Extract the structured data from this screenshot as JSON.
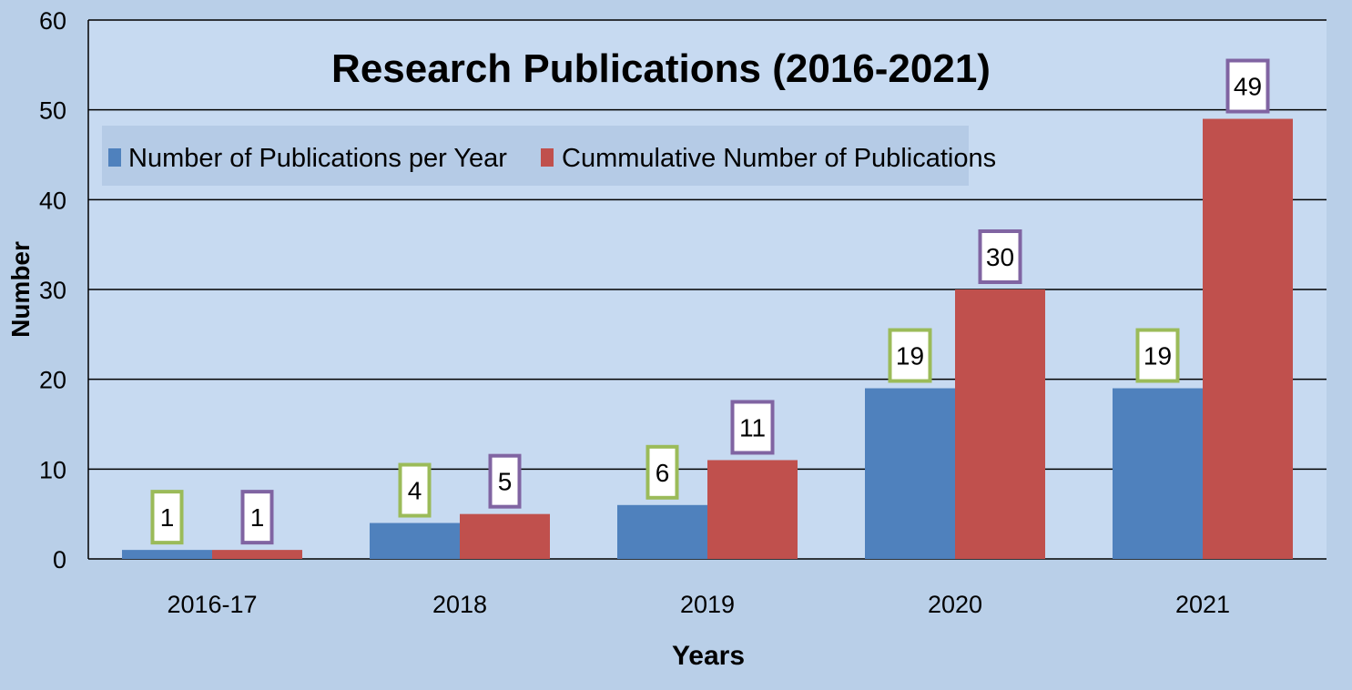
{
  "chart_data": {
    "type": "bar",
    "title": "Research Publications (2016-2021)",
    "xlabel": "Years",
    "ylabel": "Number",
    "categories": [
      "2016-17",
      "2018",
      "2019",
      "2020",
      "2021"
    ],
    "series": [
      {
        "name": "Number of Publications per Year",
        "values": [
          1,
          4,
          6,
          19,
          19
        ],
        "color": "#4f81bd",
        "label_border": "#9bbb59"
      },
      {
        "name": "Cummulative Number of Publications",
        "values": [
          1,
          5,
          11,
          30,
          49
        ],
        "color": "#c0504d",
        "label_border": "#8064a2"
      }
    ],
    "ylim": [
      0,
      60
    ],
    "yticks": [
      "0",
      "10",
      "20",
      "30",
      "40",
      "50",
      "60"
    ],
    "grid": true,
    "legend_position": "top-left",
    "colors": {
      "page_background": "#b9cfe8",
      "plot_background": "#c7daf1",
      "legend_background": "#b5cbe6",
      "gridline": "#000000"
    }
  }
}
